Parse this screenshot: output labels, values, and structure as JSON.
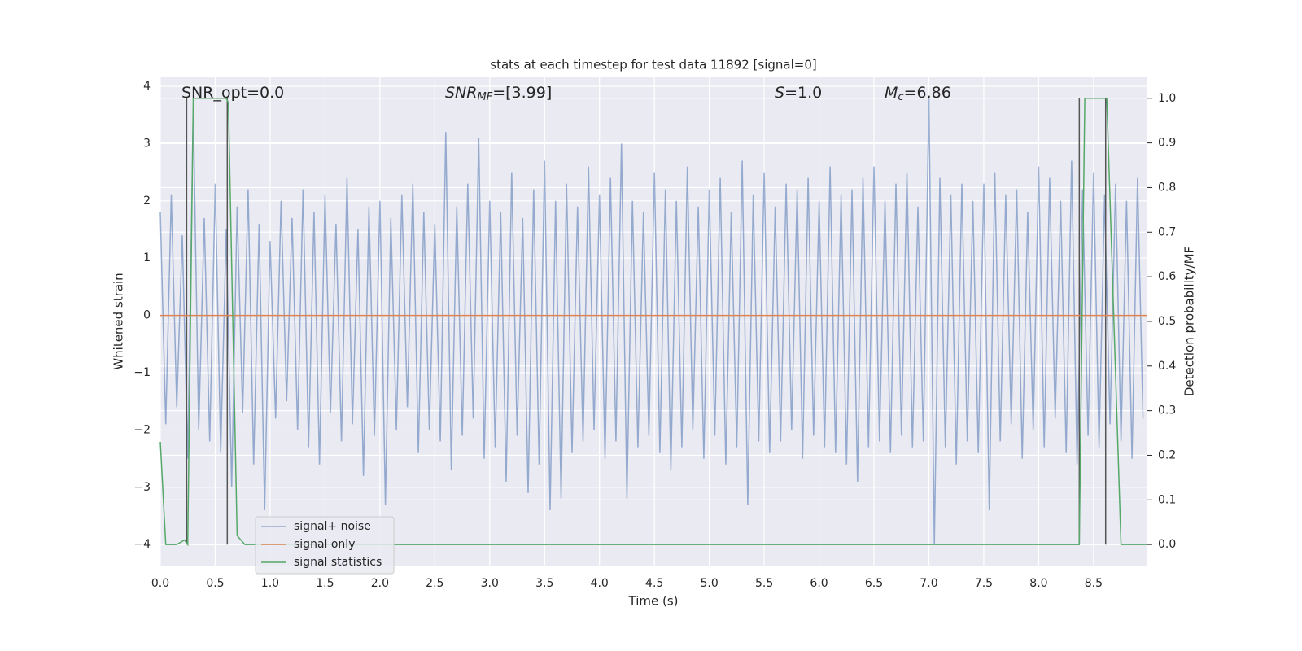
{
  "chart_data": {
    "type": "line",
    "title": "stats at each timestep for test data 11892 [signal=0]",
    "xlabel": "Time (s)",
    "ylabel": "Whitened strain",
    "y2label": "Detection probability/MF",
    "xlim": [
      0,
      8.99
    ],
    "ylim": [
      -4.38,
      4.156
    ],
    "y2lim": [
      -0.049,
      1.047
    ],
    "xticks": [
      {
        "value": 0,
        "label": "0.0"
      },
      0.5,
      {
        "value": 1,
        "label": "1.0"
      },
      1.5,
      {
        "value": 2,
        "label": "2.0"
      },
      2.5,
      {
        "value": 3,
        "label": "3.0"
      },
      3.5,
      {
        "value": 4,
        "label": "4.0"
      },
      4.5,
      {
        "value": 5,
        "label": "5.0"
      },
      5.5,
      {
        "value": 6,
        "label": "6.0"
      },
      6.5,
      {
        "value": 7,
        "label": "7.0"
      },
      7.5,
      {
        "value": 8,
        "label": "8.0"
      },
      8.5
    ],
    "yticks": [
      {
        "value": -4,
        "label": "−4"
      },
      {
        "value": -3,
        "label": "−3"
      },
      {
        "value": -2,
        "label": "−2"
      },
      {
        "value": -1,
        "label": "−1"
      },
      0,
      1,
      2,
      3,
      4
    ],
    "y2ticks": [
      {
        "value": 0,
        "label": "0.0"
      },
      0.1,
      0.2,
      0.3,
      0.4,
      0.5,
      0.6,
      0.7,
      0.8,
      0.9,
      {
        "value": 1,
        "label": "1.0"
      }
    ],
    "grid": true,
    "legend": "lower left",
    "annotations": [
      {
        "text": "SNR_opt=0.0"
      },
      {
        "text": "SNR",
        "sub": "MF",
        "tail": "=[3.99]"
      },
      {
        "text": "S",
        "tail": "=1.0"
      },
      {
        "text": "M",
        "sub": "c",
        "tail": "=6.86"
      }
    ],
    "vlines": {
      "x": [
        0.24,
        0.61,
        8.37,
        8.61
      ],
      "ylim": [
        -4,
        3.8
      ],
      "color": "#555555"
    },
    "series": [
      {
        "name": "signal+ noise",
        "color": "#4c72b0",
        "x": [
          0,
          0.05,
          0.1,
          0.15,
          0.2,
          0.25,
          0.3,
          0.35,
          0.4,
          0.45,
          0.5,
          0.55,
          0.6,
          0.65,
          0.7,
          0.75,
          0.8,
          0.85,
          0.9,
          0.95,
          1,
          1.05,
          1.1,
          1.15,
          1.2,
          1.25,
          1.3,
          1.35,
          1.4,
          1.45,
          1.5,
          1.55,
          1.6,
          1.65,
          1.7,
          1.75,
          1.8,
          1.85,
          1.9,
          1.95,
          2,
          2.05,
          2.1,
          2.15,
          2.2,
          2.25,
          2.3,
          2.35,
          2.4,
          2.45,
          2.5,
          2.55,
          2.6,
          2.65,
          2.7,
          2.75,
          2.8,
          2.85,
          2.9,
          2.95,
          3,
          3.05,
          3.1,
          3.15,
          3.2,
          3.25,
          3.3,
          3.35,
          3.4,
          3.45,
          3.5,
          3.55,
          3.6,
          3.65,
          3.7,
          3.75,
          3.8,
          3.85,
          3.9,
          3.95,
          4,
          4.05,
          4.1,
          4.15,
          4.2,
          4.25,
          4.3,
          4.35,
          4.4,
          4.45,
          4.5,
          4.55,
          4.6,
          4.65,
          4.7,
          4.75,
          4.8,
          4.85,
          4.9,
          4.95,
          5,
          5.05,
          5.1,
          5.15,
          5.2,
          5.25,
          5.3,
          5.35,
          5.4,
          5.45,
          5.5,
          5.55,
          5.6,
          5.65,
          5.7,
          5.75,
          5.8,
          5.85,
          5.9,
          5.95,
          6,
          6.05,
          6.1,
          6.15,
          6.2,
          6.25,
          6.3,
          6.35,
          6.4,
          6.45,
          6.5,
          6.55,
          6.6,
          6.65,
          6.7,
          6.75,
          6.8,
          6.85,
          6.9,
          6.95,
          7,
          7.05,
          7.1,
          7.15,
          7.2,
          7.25,
          7.3,
          7.35,
          7.4,
          7.45,
          7.5,
          7.55,
          7.6,
          7.65,
          7.7,
          7.75,
          7.8,
          7.85,
          7.9,
          7.95,
          8,
          8.05,
          8.1,
          8.15,
          8.2,
          8.25,
          8.3,
          8.35,
          8.4,
          8.45,
          8.5,
          8.55,
          8.6,
          8.65,
          8.7,
          8.75,
          8.8,
          8.85,
          8.9,
          8.95
        ],
        "values": [
          1.8,
          -1.9,
          2.1,
          -1.6,
          1.4,
          -2.5,
          3.6,
          -2.0,
          1.7,
          -2.2,
          2.3,
          -2.4,
          1.5,
          -3.0,
          1.9,
          -1.7,
          2.2,
          -2.6,
          1.6,
          -3.4,
          1.3,
          -1.8,
          2.0,
          -1.5,
          1.7,
          -2.0,
          2.2,
          -2.3,
          1.8,
          -2.6,
          2.1,
          -1.7,
          1.6,
          -2.2,
          2.4,
          -1.9,
          1.5,
          -2.8,
          1.9,
          -2.1,
          2.0,
          -3.3,
          1.7,
          -2.0,
          2.1,
          -1.6,
          2.3,
          -2.4,
          1.8,
          -2.0,
          1.6,
          -2.2,
          3.2,
          -2.7,
          1.9,
          -2.1,
          2.3,
          -1.8,
          3.1,
          -2.5,
          2.0,
          -2.3,
          1.8,
          -2.9,
          2.5,
          -2.1,
          1.7,
          -3.1,
          2.2,
          -2.6,
          2.7,
          -3.4,
          2.0,
          -3.2,
          2.3,
          -2.4,
          1.9,
          -2.2,
          2.6,
          -2.0,
          2.1,
          -2.5,
          2.4,
          -2.2,
          3.0,
          -3.2,
          2.0,
          -2.3,
          1.8,
          -2.1,
          2.5,
          -2.4,
          2.2,
          -2.7,
          2.0,
          -2.3,
          2.6,
          -2.0,
          1.9,
          -2.5,
          2.2,
          -2.1,
          2.4,
          -2.6,
          1.8,
          -2.3,
          2.7,
          -3.3,
          2.1,
          -2.2,
          2.5,
          -2.4,
          1.9,
          -2.2,
          2.3,
          -2.0,
          2.2,
          -2.5,
          2.4,
          -2.1,
          2.0,
          -2.3,
          2.6,
          -2.4,
          2.1,
          -2.6,
          2.2,
          -2.9,
          2.4,
          -2.3,
          2.6,
          -2.2,
          2.0,
          -2.4,
          2.3,
          -2.1,
          2.5,
          -2.3,
          1.9,
          -2.2,
          3.8,
          -4.0,
          2.4,
          -2.3,
          2.1,
          -2.6,
          2.3,
          -2.2,
          2.0,
          -2.4,
          2.3,
          -3.4,
          2.5,
          -2.2,
          2.1,
          -1.9,
          2.2,
          -2.5,
          1.8,
          -2.0,
          2.6,
          -2.3,
          2.4,
          -1.8,
          2.0,
          -2.4,
          2.7,
          -2.6,
          2.2,
          -2.1,
          2.5,
          -2.3,
          2.1,
          -1.9,
          2.3,
          -2.2,
          2.0,
          -2.5,
          2.4,
          -1.8
        ]
      },
      {
        "name": "signal only",
        "color": "#dd8452",
        "x": [
          0,
          8.99
        ],
        "values": [
          0,
          0
        ]
      },
      {
        "name": "signal statistics",
        "color": "#55a868",
        "axis": "y2",
        "x": [
          0,
          0.05,
          0.15,
          0.22,
          0.25,
          0.3,
          0.6,
          0.62,
          0.7,
          0.77,
          4.85,
          4.9,
          8.37,
          8.42,
          8.62,
          8.75,
          8.99
        ],
        "values": [
          0.23,
          0.0,
          0.0,
          0.01,
          0.0,
          1.0,
          1.0,
          0.99,
          0.02,
          0.0,
          0.0,
          0.0,
          0.0,
          1.0,
          1.0,
          0.0,
          0.0
        ]
      }
    ]
  }
}
